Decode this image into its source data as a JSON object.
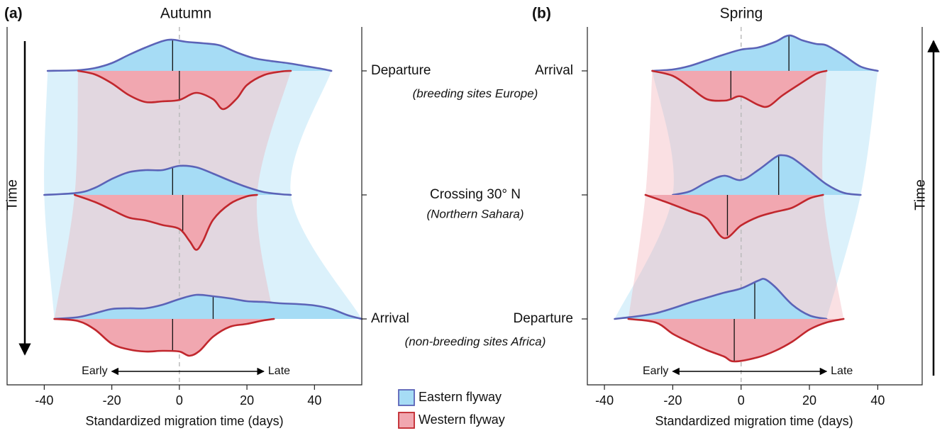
{
  "chart_data": [
    {
      "type": "density-stack",
      "panel_label": "(a)",
      "title": "Autumn",
      "xlabel": "Standardized migration time (days)",
      "xlim": [
        -51,
        54
      ],
      "xticks": [
        -40,
        -20,
        0,
        20,
        40
      ],
      "time_label": "Time",
      "time_direction": "down",
      "early_label": "Early",
      "late_label": "Late",
      "stages": [
        {
          "name": "Departure",
          "note": "(breeding sites Europe)"
        },
        {
          "name": "Crossing 30° N",
          "note": "(Northern Sahara)"
        },
        {
          "name": "Arrival",
          "note": "(non-breeding sites Africa)"
        }
      ],
      "series": [
        {
          "name": "Eastern flyway",
          "color": "#a6dcf5",
          "line_color": "#5b63b7",
          "stages": [
            {
              "x": [
                -39,
                -30,
                -25,
                -20,
                -15,
                -10,
                -5,
                -2,
                2,
                7,
                12,
                17,
                22,
                27,
                32,
                37,
                42,
                45
              ],
              "values": [
                0,
                0.02,
                0.08,
                0.22,
                0.45,
                0.66,
                0.84,
                0.88,
                0.82,
                0.78,
                0.72,
                0.52,
                0.36,
                0.28,
                0.22,
                0.14,
                0.06,
                0
              ],
              "median": -2
            },
            {
              "x": [
                -40,
                -30,
                -25,
                -20,
                -15,
                -10,
                -5,
                0,
                5,
                10,
                15,
                20,
                25,
                30,
                33
              ],
              "values": [
                0,
                0.06,
                0.2,
                0.45,
                0.64,
                0.7,
                0.7,
                0.82,
                0.78,
                0.6,
                0.4,
                0.22,
                0.08,
                0.02,
                0
              ],
              "median": -2
            },
            {
              "x": [
                -37,
                -30,
                -25,
                -20,
                -15,
                -10,
                -5,
                0,
                5,
                10,
                15,
                20,
                25,
                30,
                35,
                40,
                45,
                50,
                54
              ],
              "values": [
                0,
                0.05,
                0.16,
                0.28,
                0.3,
                0.3,
                0.4,
                0.56,
                0.68,
                0.64,
                0.58,
                0.5,
                0.48,
                0.44,
                0.42,
                0.38,
                0.28,
                0.1,
                0
              ],
              "median": 10
            }
          ]
        },
        {
          "name": "Western flyway",
          "color": "#f1a7b0",
          "line_color": "#c1272d",
          "stages": [
            {
              "x": [
                -30,
                -25,
                -20,
                -15,
                -10,
                -5,
                0,
                5,
                10,
                13,
                17,
                20,
                25,
                30,
                33
              ],
              "values": [
                0,
                0.1,
                0.35,
                0.68,
                0.88,
                0.86,
                0.82,
                0.62,
                0.8,
                1.08,
                0.78,
                0.4,
                0.12,
                0.02,
                0
              ],
              "median": 0
            },
            {
              "x": [
                -31,
                -25,
                -20,
                -15,
                -10,
                -5,
                0,
                3,
                5,
                7,
                10,
                15,
                20,
                23
              ],
              "values": [
                0,
                0.2,
                0.42,
                0.64,
                0.72,
                0.85,
                0.96,
                1.3,
                1.55,
                1.3,
                0.7,
                0.25,
                0.04,
                0
              ],
              "median": 1
            },
            {
              "x": [
                -37,
                -30,
                -25,
                -20,
                -15,
                -10,
                -5,
                0,
                3,
                6,
                10,
                15,
                20,
                25,
                28
              ],
              "values": [
                0,
                0.06,
                0.3,
                0.7,
                0.86,
                0.92,
                0.9,
                0.92,
                1.04,
                0.9,
                0.5,
                0.22,
                0.14,
                0.04,
                0
              ],
              "median": -2
            }
          ]
        }
      ]
    },
    {
      "type": "density-stack",
      "panel_label": "(b)",
      "title": "Spring",
      "xlabel": "Standardized migration time (days)",
      "xlim": [
        -45,
        53
      ],
      "xticks": [
        -40,
        -20,
        0,
        20,
        40
      ],
      "time_label": "Time",
      "time_direction": "up",
      "early_label": "Early",
      "late_label": "Late",
      "stages": [
        {
          "name": "Arrival"
        },
        {
          "name": null
        },
        {
          "name": "Departure"
        }
      ],
      "series": [
        {
          "color": "#a6dcf5",
          "line_color": "#5b63b7",
          "stages": [
            {
              "x": [
                -26,
                -20,
                -15,
                -10,
                -5,
                0,
                5,
                10,
                14,
                18,
                22,
                25,
                30,
                35,
                40
              ],
              "values": [
                0,
                0.04,
                0.14,
                0.3,
                0.46,
                0.6,
                0.66,
                0.82,
                1.0,
                0.86,
                0.76,
                0.72,
                0.44,
                0.12,
                0
              ],
              "median": 14
            },
            {
              "x": [
                -20,
                -15,
                -10,
                -5,
                0,
                5,
                10,
                12,
                15,
                20,
                25,
                30,
                35
              ],
              "values": [
                0,
                0.1,
                0.36,
                0.54,
                0.42,
                0.7,
                1.06,
                1.12,
                1.04,
                0.68,
                0.3,
                0.06,
                0
              ],
              "median": 11
            },
            {
              "x": [
                -37,
                -30,
                -25,
                -20,
                -15,
                -10,
                -5,
                0,
                5,
                7,
                10,
                15,
                20,
                25
              ],
              "values": [
                0,
                0.08,
                0.16,
                0.3,
                0.46,
                0.6,
                0.74,
                0.86,
                1.08,
                1.12,
                0.9,
                0.4,
                0.1,
                0
              ],
              "median": 4
            }
          ]
        },
        {
          "color": "#f1a7b0",
          "line_color": "#c1272d",
          "stages": [
            {
              "x": [
                -26,
                -20,
                -15,
                -10,
                -5,
                -3,
                0,
                5,
                8,
                12,
                17,
                22,
                25
              ],
              "values": [
                0,
                0.14,
                0.46,
                0.8,
                0.84,
                0.8,
                0.72,
                0.96,
                1.0,
                0.7,
                0.38,
                0.08,
                0
              ],
              "median": -3
            },
            {
              "x": [
                -28,
                -22,
                -15,
                -10,
                -5,
                0,
                5,
                10,
                15,
                20,
                24
              ],
              "values": [
                0,
                0.2,
                0.46,
                0.66,
                1.22,
                0.86,
                0.62,
                0.48,
                0.36,
                0.1,
                0
              ],
              "median": -4
            },
            {
              "x": [
                -33,
                -25,
                -20,
                -15,
                -10,
                -5,
                -2,
                5,
                10,
                15,
                20,
                25,
                30
              ],
              "values": [
                0,
                0.1,
                0.42,
                0.66,
                0.88,
                1.06,
                1.2,
                1.08,
                0.9,
                0.64,
                0.3,
                0.1,
                0
              ],
              "median": -2
            }
          ]
        }
      ]
    }
  ]
}
